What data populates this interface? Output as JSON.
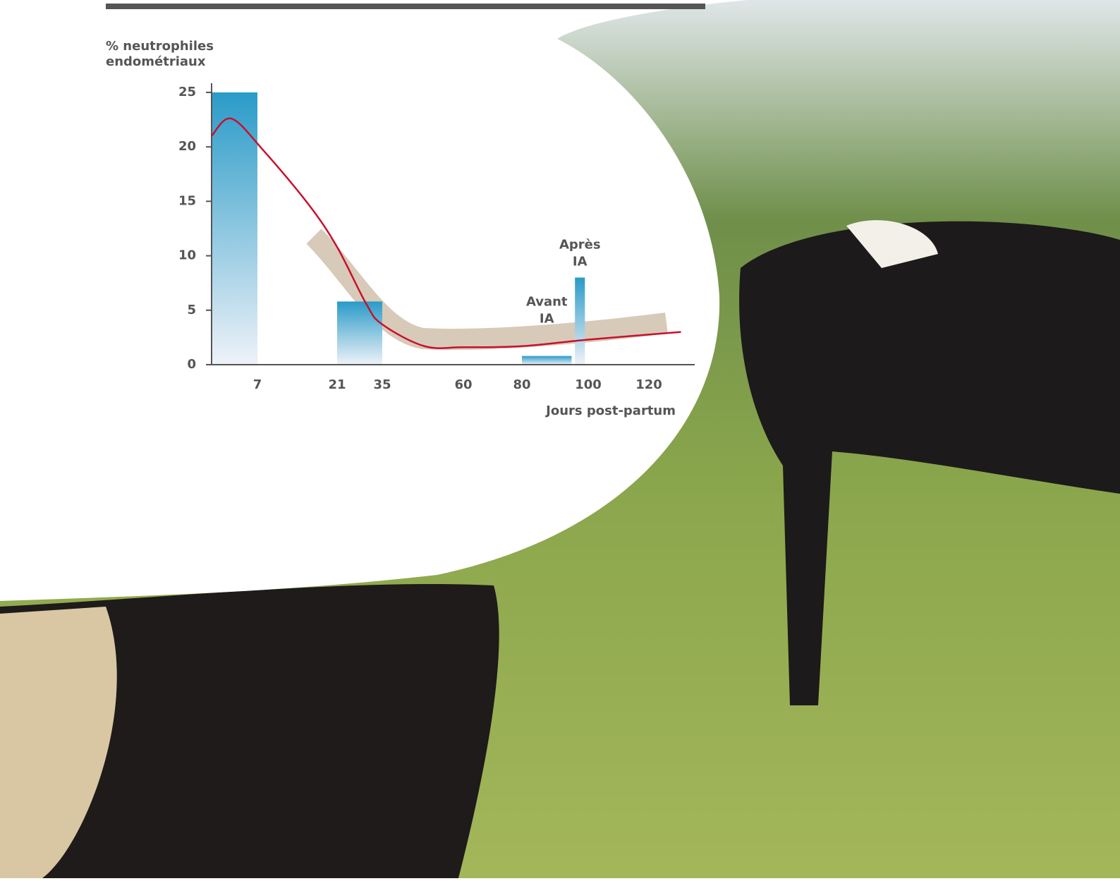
{
  "chart_data": {
    "type": "bar-line",
    "ylabel": [
      "% neutrophiles",
      "endométriaux"
    ],
    "xlabel": "Jours post-partum",
    "xlim": [
      0,
      130
    ],
    "xticks": [
      7,
      21,
      35,
      60,
      80,
      100,
      120
    ],
    "ylim": [
      0,
      25
    ],
    "yticks": [
      0,
      5,
      10,
      15,
      20,
      25
    ],
    "bars": [
      {
        "x0": 0,
        "x1": 7,
        "value": 25
      },
      {
        "x0": 21,
        "x1": 35,
        "value": 5.8
      },
      {
        "x0": 80,
        "x1": 95,
        "value": 0.8,
        "label": [
          "Avant",
          "IA"
        ]
      },
      {
        "x0": 96,
        "x1": 99,
        "value": 8,
        "label": [
          "Après",
          "IA"
        ]
      }
    ],
    "bar_color": "#2a9bc8",
    "line": {
      "color": "#c8102e",
      "x": [
        0,
        3,
        8,
        16,
        21,
        30,
        35,
        48,
        60,
        80,
        100,
        127
      ],
      "values": [
        21,
        22.6,
        19.7,
        14.7,
        10.8,
        5.6,
        3.7,
        1.7,
        1.6,
        1.7,
        2.3,
        3.0
      ]
    }
  }
}
